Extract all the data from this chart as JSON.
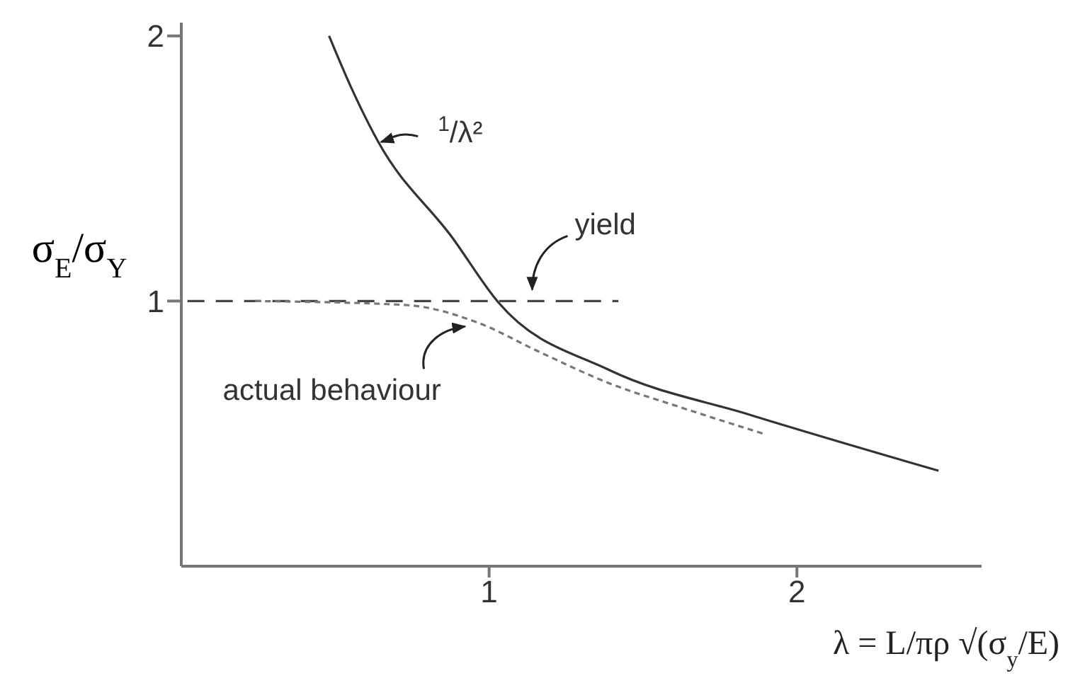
{
  "chart_data": {
    "type": "line",
    "xlabel": "λ = L/πρ √(σ$_{y}$/E)",
    "ylabel": "σ$_{E}$/σ$_{Y}$",
    "xlim": [
      0,
      2.6
    ],
    "ylim": [
      0,
      2.05
    ],
    "xticks": [
      1,
      2
    ],
    "yticks": [
      1,
      2
    ],
    "marker": "none",
    "series": [
      {
        "color": "#333333",
        "line_style": "solid",
        "x": [
          0.48,
          0.55,
          0.64,
          0.88,
          1.03,
          1.39,
          1.85,
          2.46
        ],
        "values": [
          2.0,
          1.81,
          1.6,
          1.24,
          0.995,
          0.74,
          0.57,
          0.36
        ]
      },
      {
        "color": "#444444",
        "line_style": "dashed",
        "x": [
          0.02,
          1.42
        ],
        "values": [
          1,
          1
        ]
      },
      {
        "color": "#777777",
        "line_style": "dotted",
        "x": [
          0.24,
          0.73,
          0.96,
          1.16,
          1.39,
          1.62,
          1.89
        ],
        "values": [
          1,
          0.985,
          0.92,
          0.81,
          0.69,
          0.6,
          0.5
        ]
      }
    ],
    "annotations": [
      {
        "text": "$^{1}$/λ²",
        "x": 0.64,
        "y": 1.6
      },
      {
        "text": "yield",
        "x": 1.14,
        "y": 1.0
      },
      {
        "text": "actual behaviour",
        "x": 0.94,
        "y": 0.92
      }
    ]
  }
}
